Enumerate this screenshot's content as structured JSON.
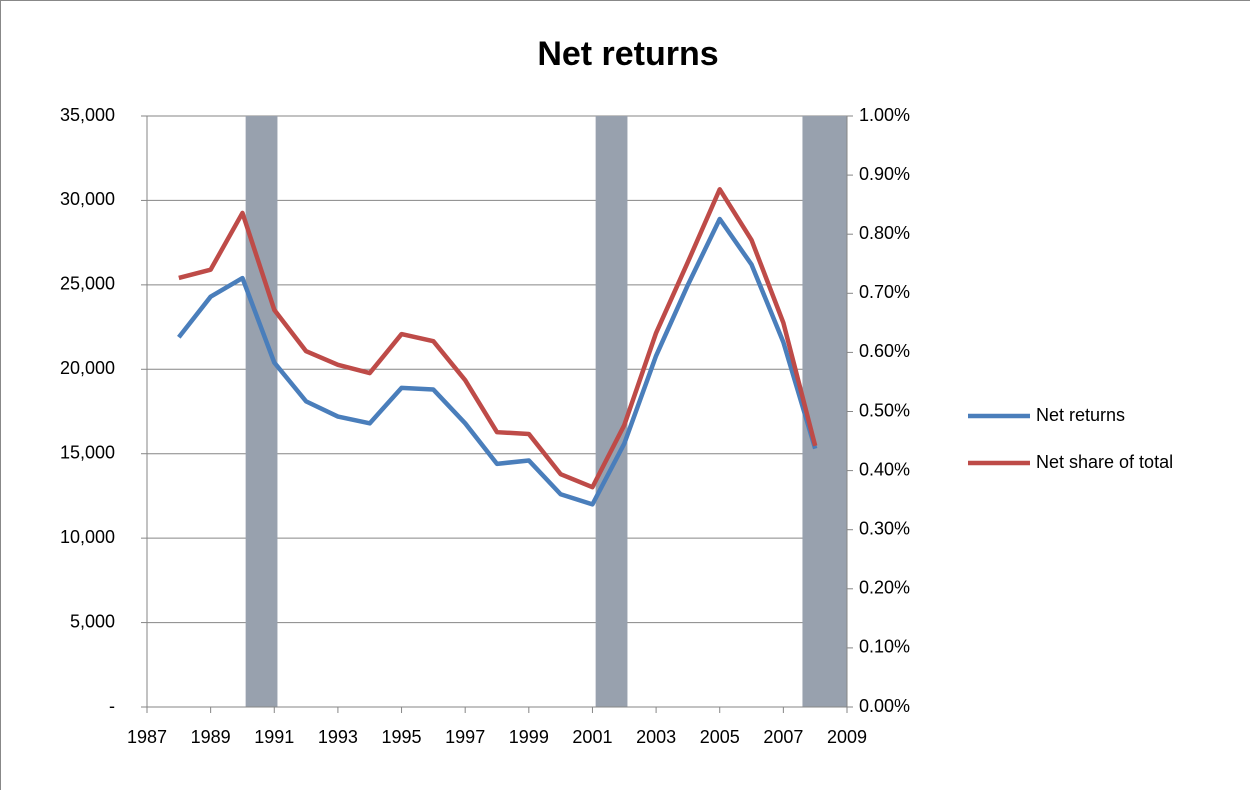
{
  "chart_data": {
    "type": "line",
    "title": "Net returns",
    "x": [
      1988,
      1989,
      1990,
      1991,
      1992,
      1993,
      1994,
      1995,
      1996,
      1997,
      1998,
      1999,
      2000,
      2001,
      2002,
      2003,
      2004,
      2005,
      2006,
      2007,
      2008
    ],
    "series": [
      {
        "name": "Net returns",
        "color": "#4a7ebb",
        "values": [
          21900,
          24300,
          25400,
          20400,
          18100,
          17200,
          16800,
          18900,
          18800,
          16800,
          14400,
          14600,
          12600,
          12000,
          15600,
          20800,
          25000,
          28900,
          26200,
          21600,
          15300
        ]
      },
      {
        "name": "Net share of total",
        "color": "#be4b48",
        "axis": "y2",
        "values": [
          0.726,
          0.74,
          0.836,
          0.672,
          0.602,
          0.579,
          0.565,
          0.631,
          0.619,
          0.553,
          0.465,
          0.462,
          0.394,
          0.372,
          0.477,
          0.633,
          0.753,
          0.876,
          0.79,
          0.65,
          0.442
        ]
      }
    ],
    "shaded_periods": [
      [
        1990.1,
        1991.1
      ],
      [
        2001.1,
        2002.1
      ],
      [
        2007.6,
        2009
      ]
    ],
    "shade_color": "#98a1ae",
    "xlim": [
      1987,
      2009
    ],
    "xticks": [
      1987,
      1989,
      1991,
      1993,
      1995,
      1997,
      1999,
      2001,
      2003,
      2005,
      2007,
      2009
    ],
    "ylim": [
      0,
      35000
    ],
    "yticks": [
      {
        "value": 0,
        "label": "-"
      },
      {
        "value": 5000,
        "label": "5,000"
      },
      {
        "value": 10000,
        "label": "10,000"
      },
      {
        "value": 15000,
        "label": "15,000"
      },
      {
        "value": 20000,
        "label": "20,000"
      },
      {
        "value": 25000,
        "label": "25,000"
      },
      {
        "value": 30000,
        "label": "30,000"
      },
      {
        "value": 35000,
        "label": "35,000"
      }
    ],
    "y2lim": [
      0,
      1
    ],
    "y2ticks": [
      {
        "value": 0,
        "label": "0.00%"
      },
      {
        "value": 0.1,
        "label": "0.10%"
      },
      {
        "value": 0.2,
        "label": "0.20%"
      },
      {
        "value": 0.3,
        "label": "0.30%"
      },
      {
        "value": 0.4,
        "label": "0.40%"
      },
      {
        "value": 0.5,
        "label": "0.50%"
      },
      {
        "value": 0.6,
        "label": "0.60%"
      },
      {
        "value": 0.7,
        "label": "0.70%"
      },
      {
        "value": 0.8,
        "label": "0.80%"
      },
      {
        "value": 0.9,
        "label": "0.90%"
      },
      {
        "value": 1,
        "label": "1.00%"
      }
    ],
    "grid": true,
    "legend": "right"
  }
}
